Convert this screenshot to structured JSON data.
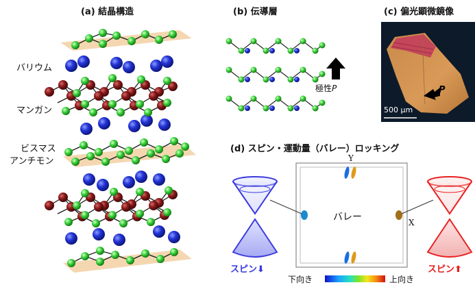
{
  "panels": {
    "a": "(a) 結晶構造",
    "b": "(b) 伝導層",
    "c": "(c) 偏光顕微鏡像",
    "d": "(d) スピン・運動量（バレー）ロッキング"
  },
  "labels": {
    "barium": "バリウム",
    "manganese": "マンガン",
    "bismuth": "ビスマス",
    "antimony": "アンチモン",
    "polarity_prefix": "極性",
    "polarity_symbol": "P",
    "photo_P": "P",
    "scale": "500 μm",
    "valley": "バレー",
    "axis_x": "X",
    "axis_y": "Y",
    "spin_left_text": "スピン",
    "spin_left_arrow": "⬇",
    "spin_right_text": "スピン",
    "spin_right_arrow": "⬆",
    "bar_down": "下向き",
    "bar_up": "上向き"
  },
  "colors": {
    "barium": "#1f2fc9",
    "manganese": "#7a1414",
    "pnictogen": "#2fd12f",
    "plane": "#f3d3a8",
    "spin_down": "#3a3ae0",
    "spin_up": "#e82020"
  }
}
